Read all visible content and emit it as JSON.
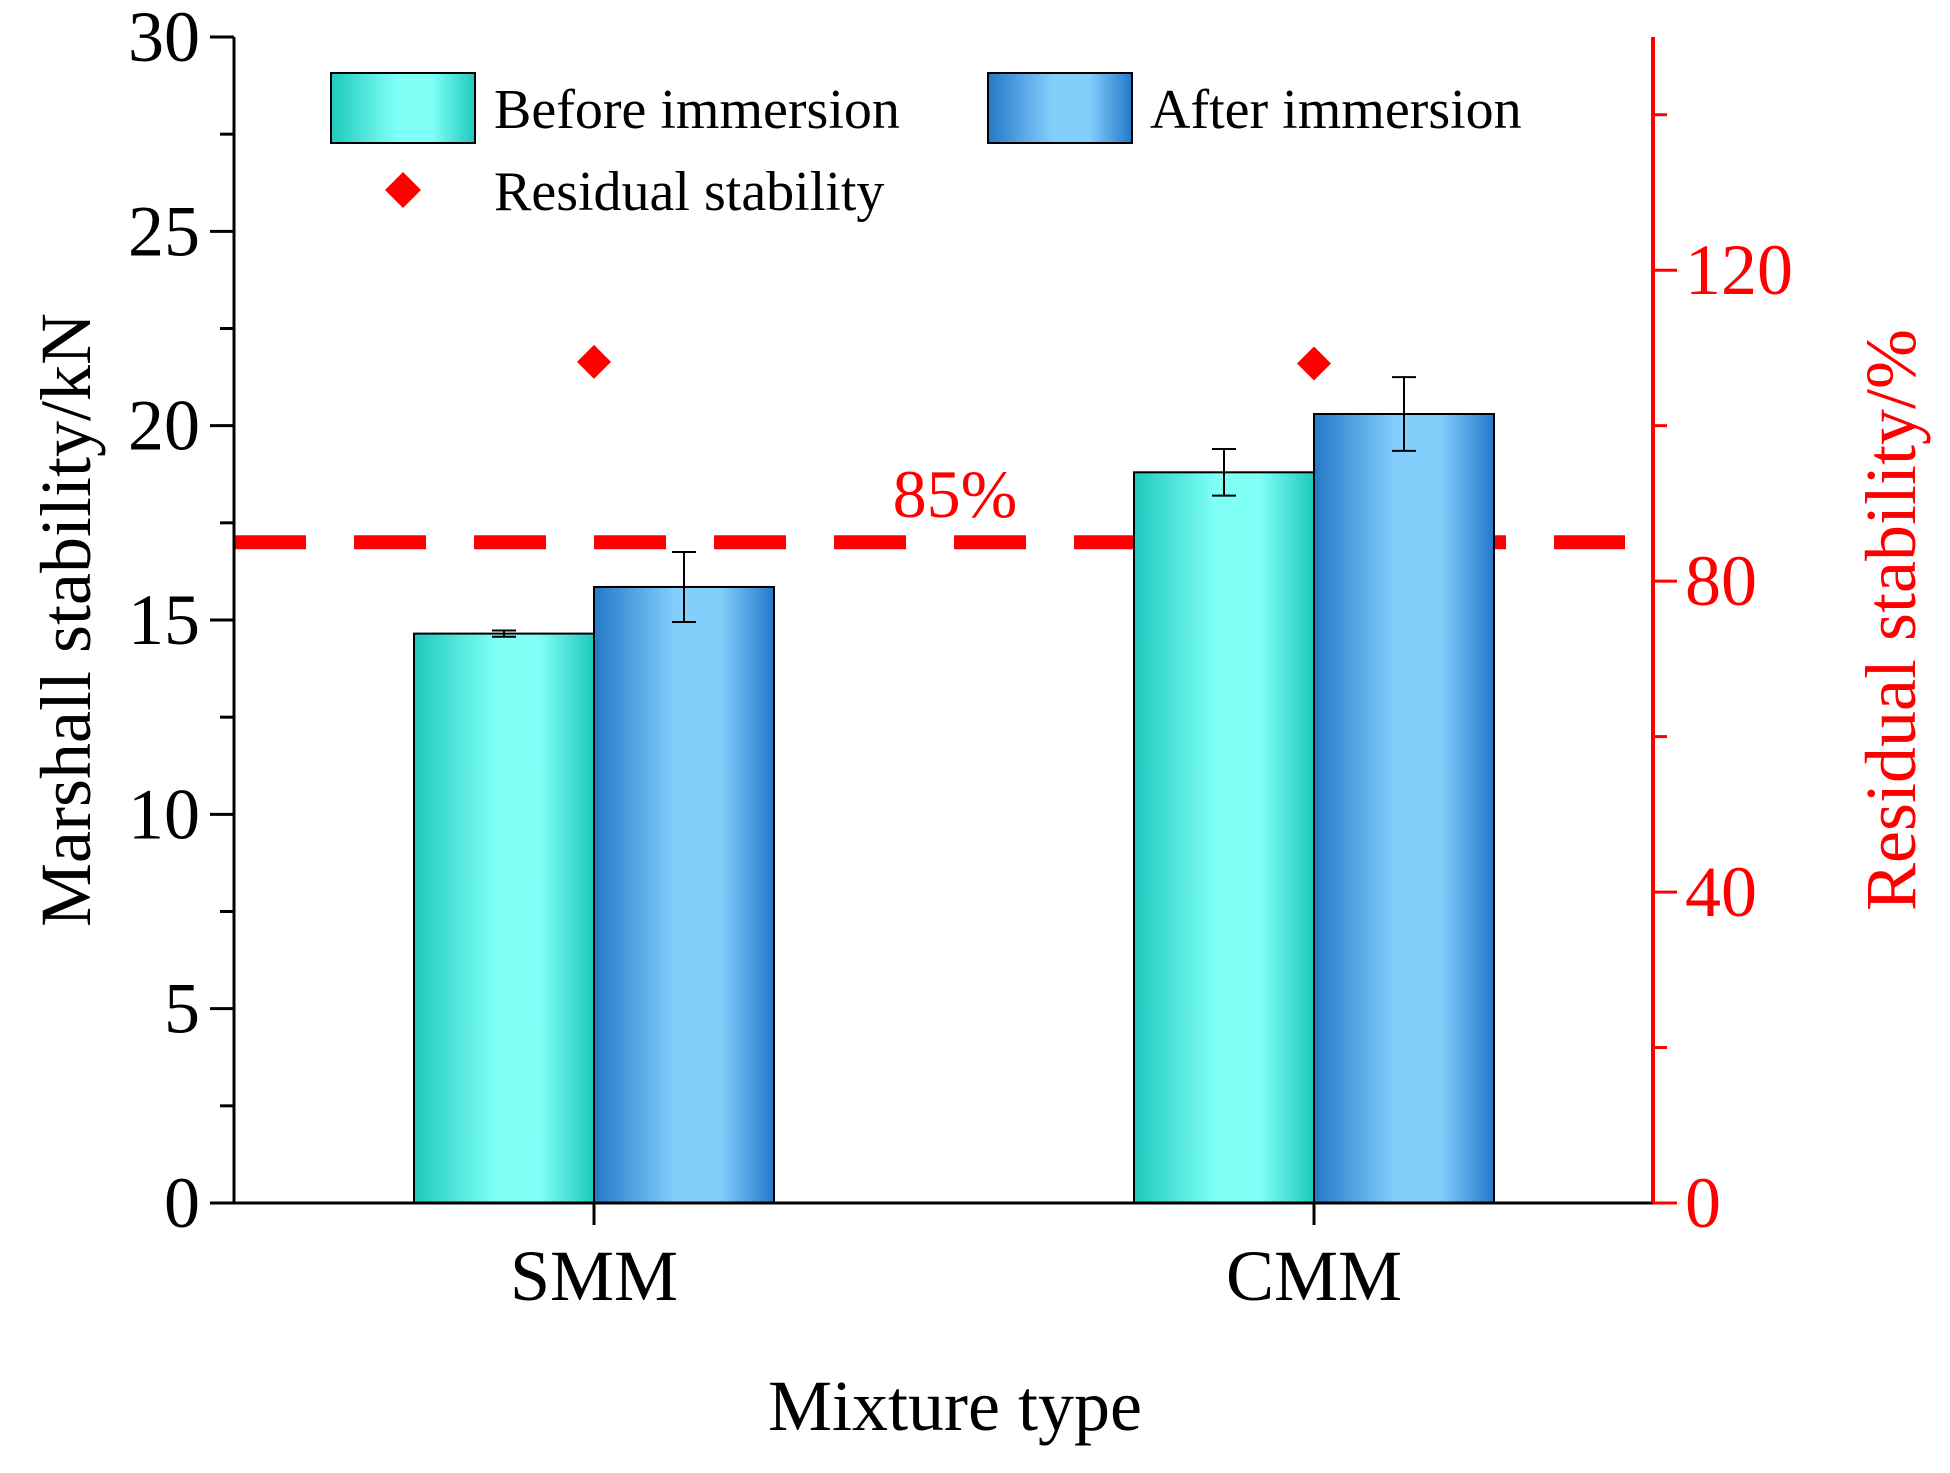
{
  "chart_data": {
    "type": "bar",
    "categories": [
      "SMM",
      "CMM"
    ],
    "xlabel": "Mixture type",
    "ylabel": "Marshall stability/kN",
    "y2label": "Residual stability/%",
    "ylim": [
      0,
      30
    ],
    "y2lim": [
      0,
      150
    ],
    "yticks": [
      0,
      5,
      10,
      15,
      20,
      25,
      30
    ],
    "yticklabels": [
      "0",
      "5",
      "10",
      "15",
      "20",
      "25",
      "30"
    ],
    "y2ticks": [
      0,
      40,
      80,
      120
    ],
    "y2ticklabels": [
      "0",
      "40",
      "80",
      "120"
    ],
    "series": [
      {
        "name": "Before immersion",
        "values": [
          14.65,
          18.8
        ],
        "errors": [
          0.08,
          0.6
        ],
        "color": "#2ed8c8"
      },
      {
        "name": "After immersion",
        "values": [
          15.85,
          20.3
        ],
        "errors": [
          0.9,
          0.95
        ],
        "color": "#3a9ae0"
      }
    ],
    "residual": {
      "name": "Residual stability",
      "values": [
        108.2,
        108.0
      ],
      "color": "#ff0000"
    },
    "reference_line": {
      "value": 85,
      "label": "85%",
      "color": "#ff0000"
    },
    "legend": {
      "position": "top",
      "entries": [
        "Before immersion",
        "After immersion",
        "Residual stability"
      ]
    },
    "grid": false
  }
}
